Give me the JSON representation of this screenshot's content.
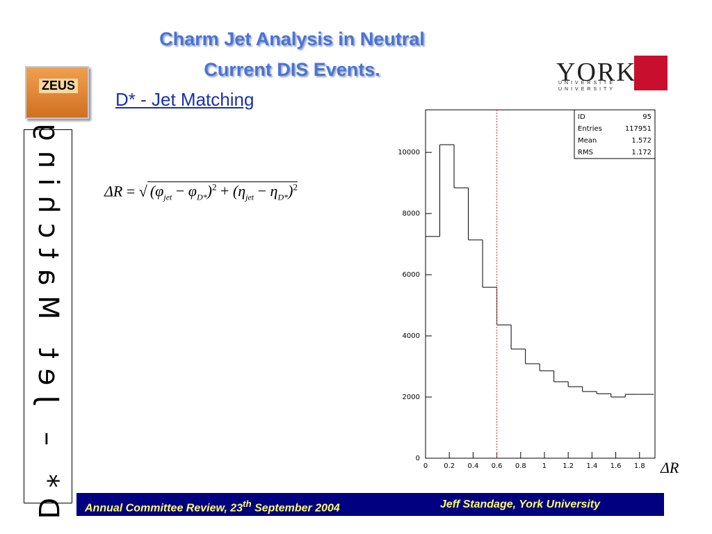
{
  "header": {
    "title_lines": [
      "Charm Jet Analysis in Neutral",
      "Current DIS Events."
    ],
    "subtitle": "D* - Jet Matching",
    "side_label": "D* – Jet Matching"
  },
  "logos": {
    "zeus": "ZEUS",
    "york": "YORK",
    "york_fr": "UNIVERSITÉ",
    "york_en": "UNIVERSITY"
  },
  "formula": [
    "ΔR",
    "=",
    "(φ",
    "jet",
    "−",
    "φ",
    "D*",
    ")",
    "2",
    "+",
    "(η",
    "jet",
    "−",
    "η",
    "D*",
    ")",
    "2"
  ],
  "chart_data": {
    "type": "histogram",
    "x_label": "ΔR",
    "bins": [
      0,
      0.12,
      0.24,
      0.36,
      0.48,
      0.6,
      0.72,
      0.84,
      0.96,
      1.08,
      1.2,
      1.32,
      1.44,
      1.56,
      1.68,
      1.8,
      1.92
    ],
    "values": [
      7250,
      10250,
      8840,
      7140,
      5590,
      4360,
      3570,
      3090,
      2860,
      2500,
      2340,
      2180,
      2110,
      2000,
      2090,
      2090
    ],
    "color": "#000000",
    "cut": 0.6,
    "cut_color": "#e03030",
    "xlim": [
      0,
      1.93
    ],
    "ylim": [
      0,
      11390
    ],
    "xticks": [
      0,
      0.2,
      0.4,
      0.6,
      0.8,
      1,
      1.2,
      1.4,
      1.6,
      1.8
    ],
    "yticks": [
      0,
      2000,
      4000,
      6000,
      8000,
      10000
    ],
    "stats": [
      [
        "ID",
        "95"
      ],
      [
        "Entries",
        "117951"
      ],
      [
        "Mean",
        "1.572"
      ],
      [
        "RMS",
        "1.172"
      ]
    ]
  },
  "footer": {
    "left": "Annual Committee Review, 23",
    "left_sup": "th",
    "left_end": " September 2004",
    "right": "Jeff Standage, York University"
  }
}
